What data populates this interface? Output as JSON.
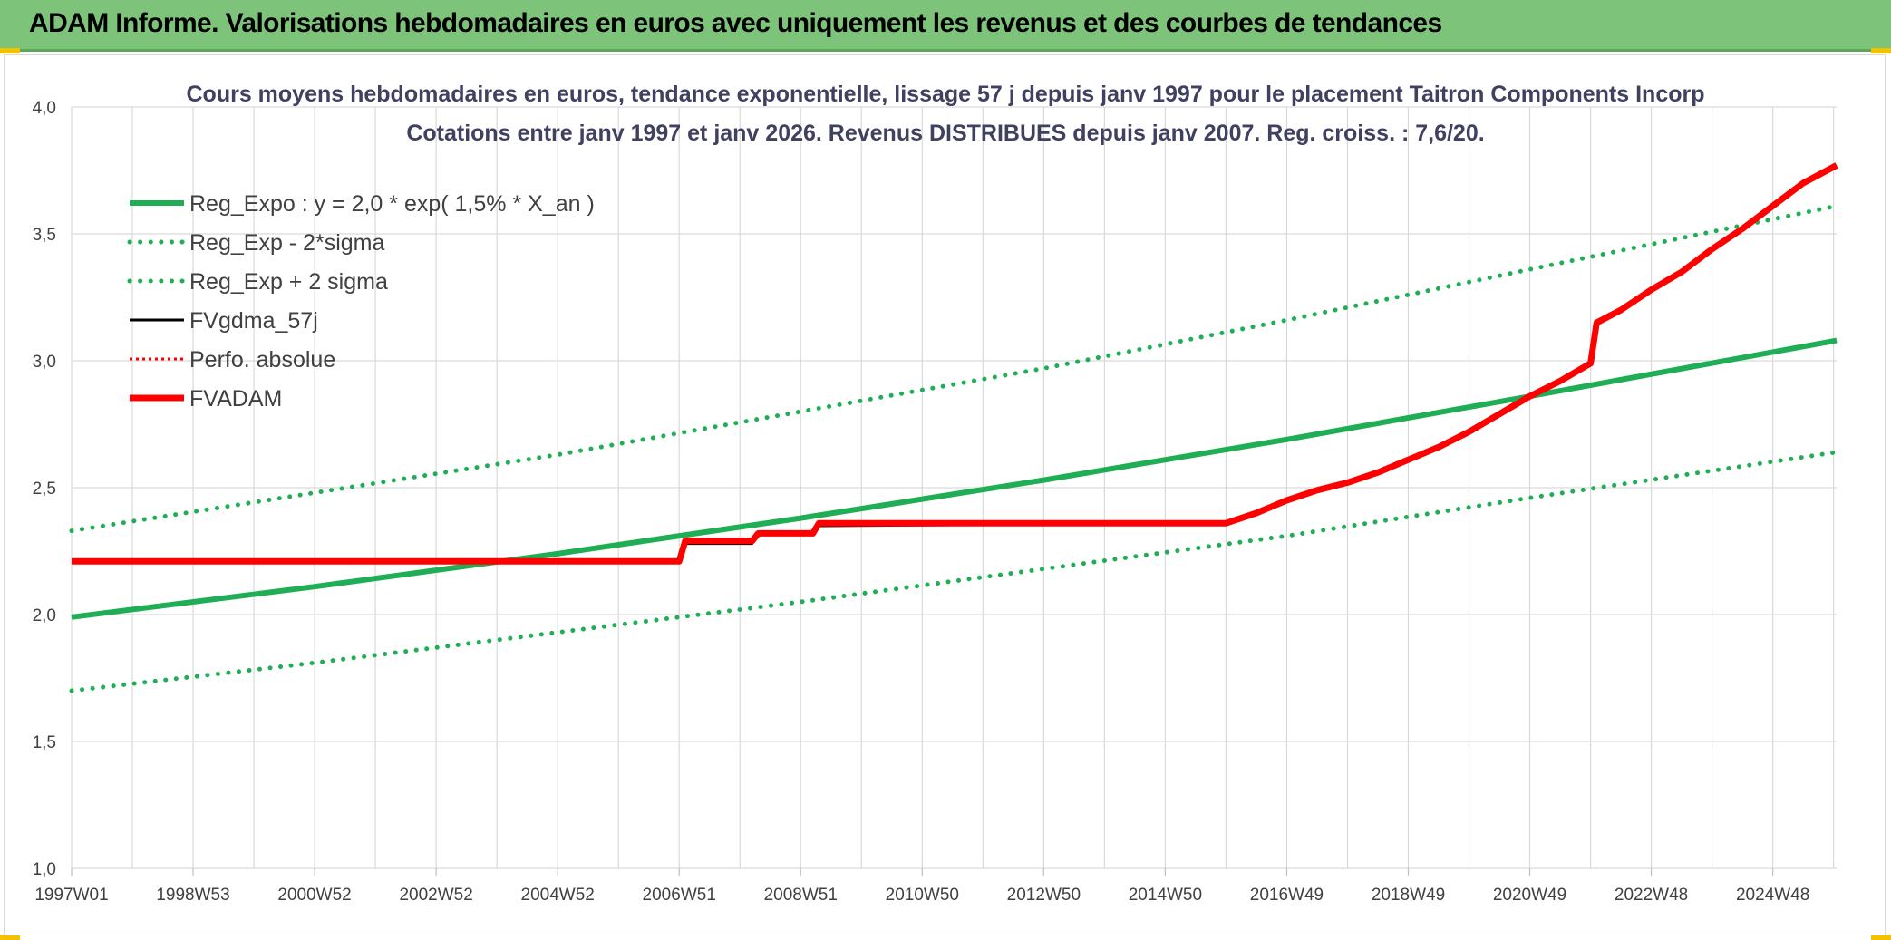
{
  "banner": {
    "title": "ADAM Informe. Valorisations hebdomadaires en euros avec uniquement les revenus et des courbes de tendances"
  },
  "colors": {
    "banner_bg": "#7dc47a",
    "green": "#1fae55",
    "red": "#ff0000",
    "black": "#000000",
    "accent_yellow": "#f2c200"
  },
  "chart_data": {
    "type": "line",
    "title": "Cours moyens hebdomadaires en euros, tendance exponentielle, lissage 57 j depuis janv 1997 pour le placement Taitron Components Incorp",
    "subtitle": "Cotations entre janv 1997 et janv 2026. Revenus DISTRIBUES depuis janv 2007. Reg. croiss. : 7,6/20.",
    "xlabel": "",
    "ylabel": "",
    "ylim": [
      1.0,
      4.0
    ],
    "xlim": [
      1997.0,
      2026.05
    ],
    "yticks": [
      "1,0",
      "1,5",
      "2,0",
      "2,5",
      "3,0",
      "3,5",
      "4,0"
    ],
    "xticks": [
      "1997W01",
      "1998W53",
      "2000W52",
      "2002W52",
      "2004W52",
      "2006W51",
      "2008W51",
      "2010W50",
      "2012W50",
      "2014W50",
      "2016W49",
      "2018W49",
      "2020W49",
      "2022W48",
      "2024W48"
    ],
    "grid": true,
    "legend_position": "top-left",
    "series": [
      {
        "name": "Reg_Expo : y = 2,0 * exp( 1,5% *  X_an )",
        "style": "solid",
        "color": "#1fae55",
        "x": [
          1997.0,
          2001.0,
          2005.0,
          2009.0,
          2013.0,
          2017.0,
          2021.0,
          2026.05
        ],
        "y": [
          1.99,
          2.11,
          2.24,
          2.38,
          2.53,
          2.69,
          2.86,
          3.08
        ]
      },
      {
        "name": "Reg_Exp - 2*sigma",
        "style": "dotted",
        "color": "#1fae55",
        "x": [
          1997.0,
          2001.0,
          2005.0,
          2009.0,
          2013.0,
          2017.0,
          2021.0,
          2026.05
        ],
        "y": [
          1.7,
          1.81,
          1.93,
          2.05,
          2.18,
          2.31,
          2.46,
          2.64
        ]
      },
      {
        "name": "Reg_Exp + 2 sigma",
        "style": "dotted",
        "color": "#1fae55",
        "x": [
          1997.0,
          2001.0,
          2005.0,
          2009.0,
          2013.0,
          2017.0,
          2021.0,
          2026.05
        ],
        "y": [
          2.33,
          2.48,
          2.63,
          2.8,
          2.97,
          3.16,
          3.36,
          3.61
        ]
      },
      {
        "name": "FVgdma_57j",
        "style": "solid-thin",
        "color": "#000000",
        "x": [
          1997.0,
          2007.0,
          2007.1,
          2008.2,
          2008.3,
          2009.2,
          2009.3,
          2016.0,
          2016.5,
          2017.0,
          2017.5,
          2018.0,
          2018.5,
          2019.0,
          2019.5,
          2020.0,
          2020.5,
          2021.0,
          2021.5,
          2022.0,
          2022.1,
          2022.5,
          2023.0,
          2023.5,
          2024.0,
          2024.5,
          2025.0,
          2025.5,
          2026.05
        ],
        "y": [
          2.21,
          2.21,
          2.28,
          2.28,
          2.32,
          2.32,
          2.35,
          2.36,
          2.4,
          2.45,
          2.49,
          2.52,
          2.56,
          2.61,
          2.66,
          2.72,
          2.79,
          2.86,
          2.92,
          2.99,
          3.15,
          3.2,
          3.28,
          3.35,
          3.44,
          3.52,
          3.61,
          3.7,
          3.77
        ]
      },
      {
        "name": "Perfo. absolue",
        "style": "dotted",
        "color": "#ff0000",
        "x": [
          1997.0,
          2007.0,
          2007.1,
          2008.2,
          2008.3,
          2009.2,
          2009.3,
          2016.0,
          2016.5,
          2017.0,
          2017.5,
          2018.0,
          2018.5,
          2019.0,
          2019.5,
          2020.0,
          2020.5,
          2021.0,
          2021.5,
          2022.0,
          2022.1,
          2022.5,
          2023.0,
          2023.5,
          2024.0,
          2024.5,
          2025.0,
          2025.5,
          2026.05
        ],
        "y": [
          2.21,
          2.21,
          2.29,
          2.29,
          2.32,
          2.32,
          2.36,
          2.36,
          2.4,
          2.45,
          2.49,
          2.52,
          2.56,
          2.61,
          2.66,
          2.72,
          2.79,
          2.86,
          2.92,
          2.99,
          3.15,
          3.2,
          3.28,
          3.35,
          3.44,
          3.52,
          3.61,
          3.7,
          3.77
        ]
      },
      {
        "name": "FVADAM",
        "style": "solid",
        "color": "#ff0000",
        "x": [
          1997.0,
          2007.0,
          2007.1,
          2008.2,
          2008.3,
          2009.2,
          2009.3,
          2016.0,
          2016.5,
          2017.0,
          2017.5,
          2018.0,
          2018.5,
          2019.0,
          2019.5,
          2020.0,
          2020.5,
          2021.0,
          2021.5,
          2022.0,
          2022.1,
          2022.5,
          2023.0,
          2023.5,
          2024.0,
          2024.5,
          2025.0,
          2025.5,
          2026.05
        ],
        "y": [
          2.21,
          2.21,
          2.29,
          2.29,
          2.32,
          2.32,
          2.36,
          2.36,
          2.4,
          2.45,
          2.49,
          2.52,
          2.56,
          2.61,
          2.66,
          2.72,
          2.79,
          2.86,
          2.92,
          2.99,
          3.15,
          3.2,
          3.28,
          3.35,
          3.44,
          3.52,
          3.61,
          3.7,
          3.77
        ]
      }
    ]
  }
}
